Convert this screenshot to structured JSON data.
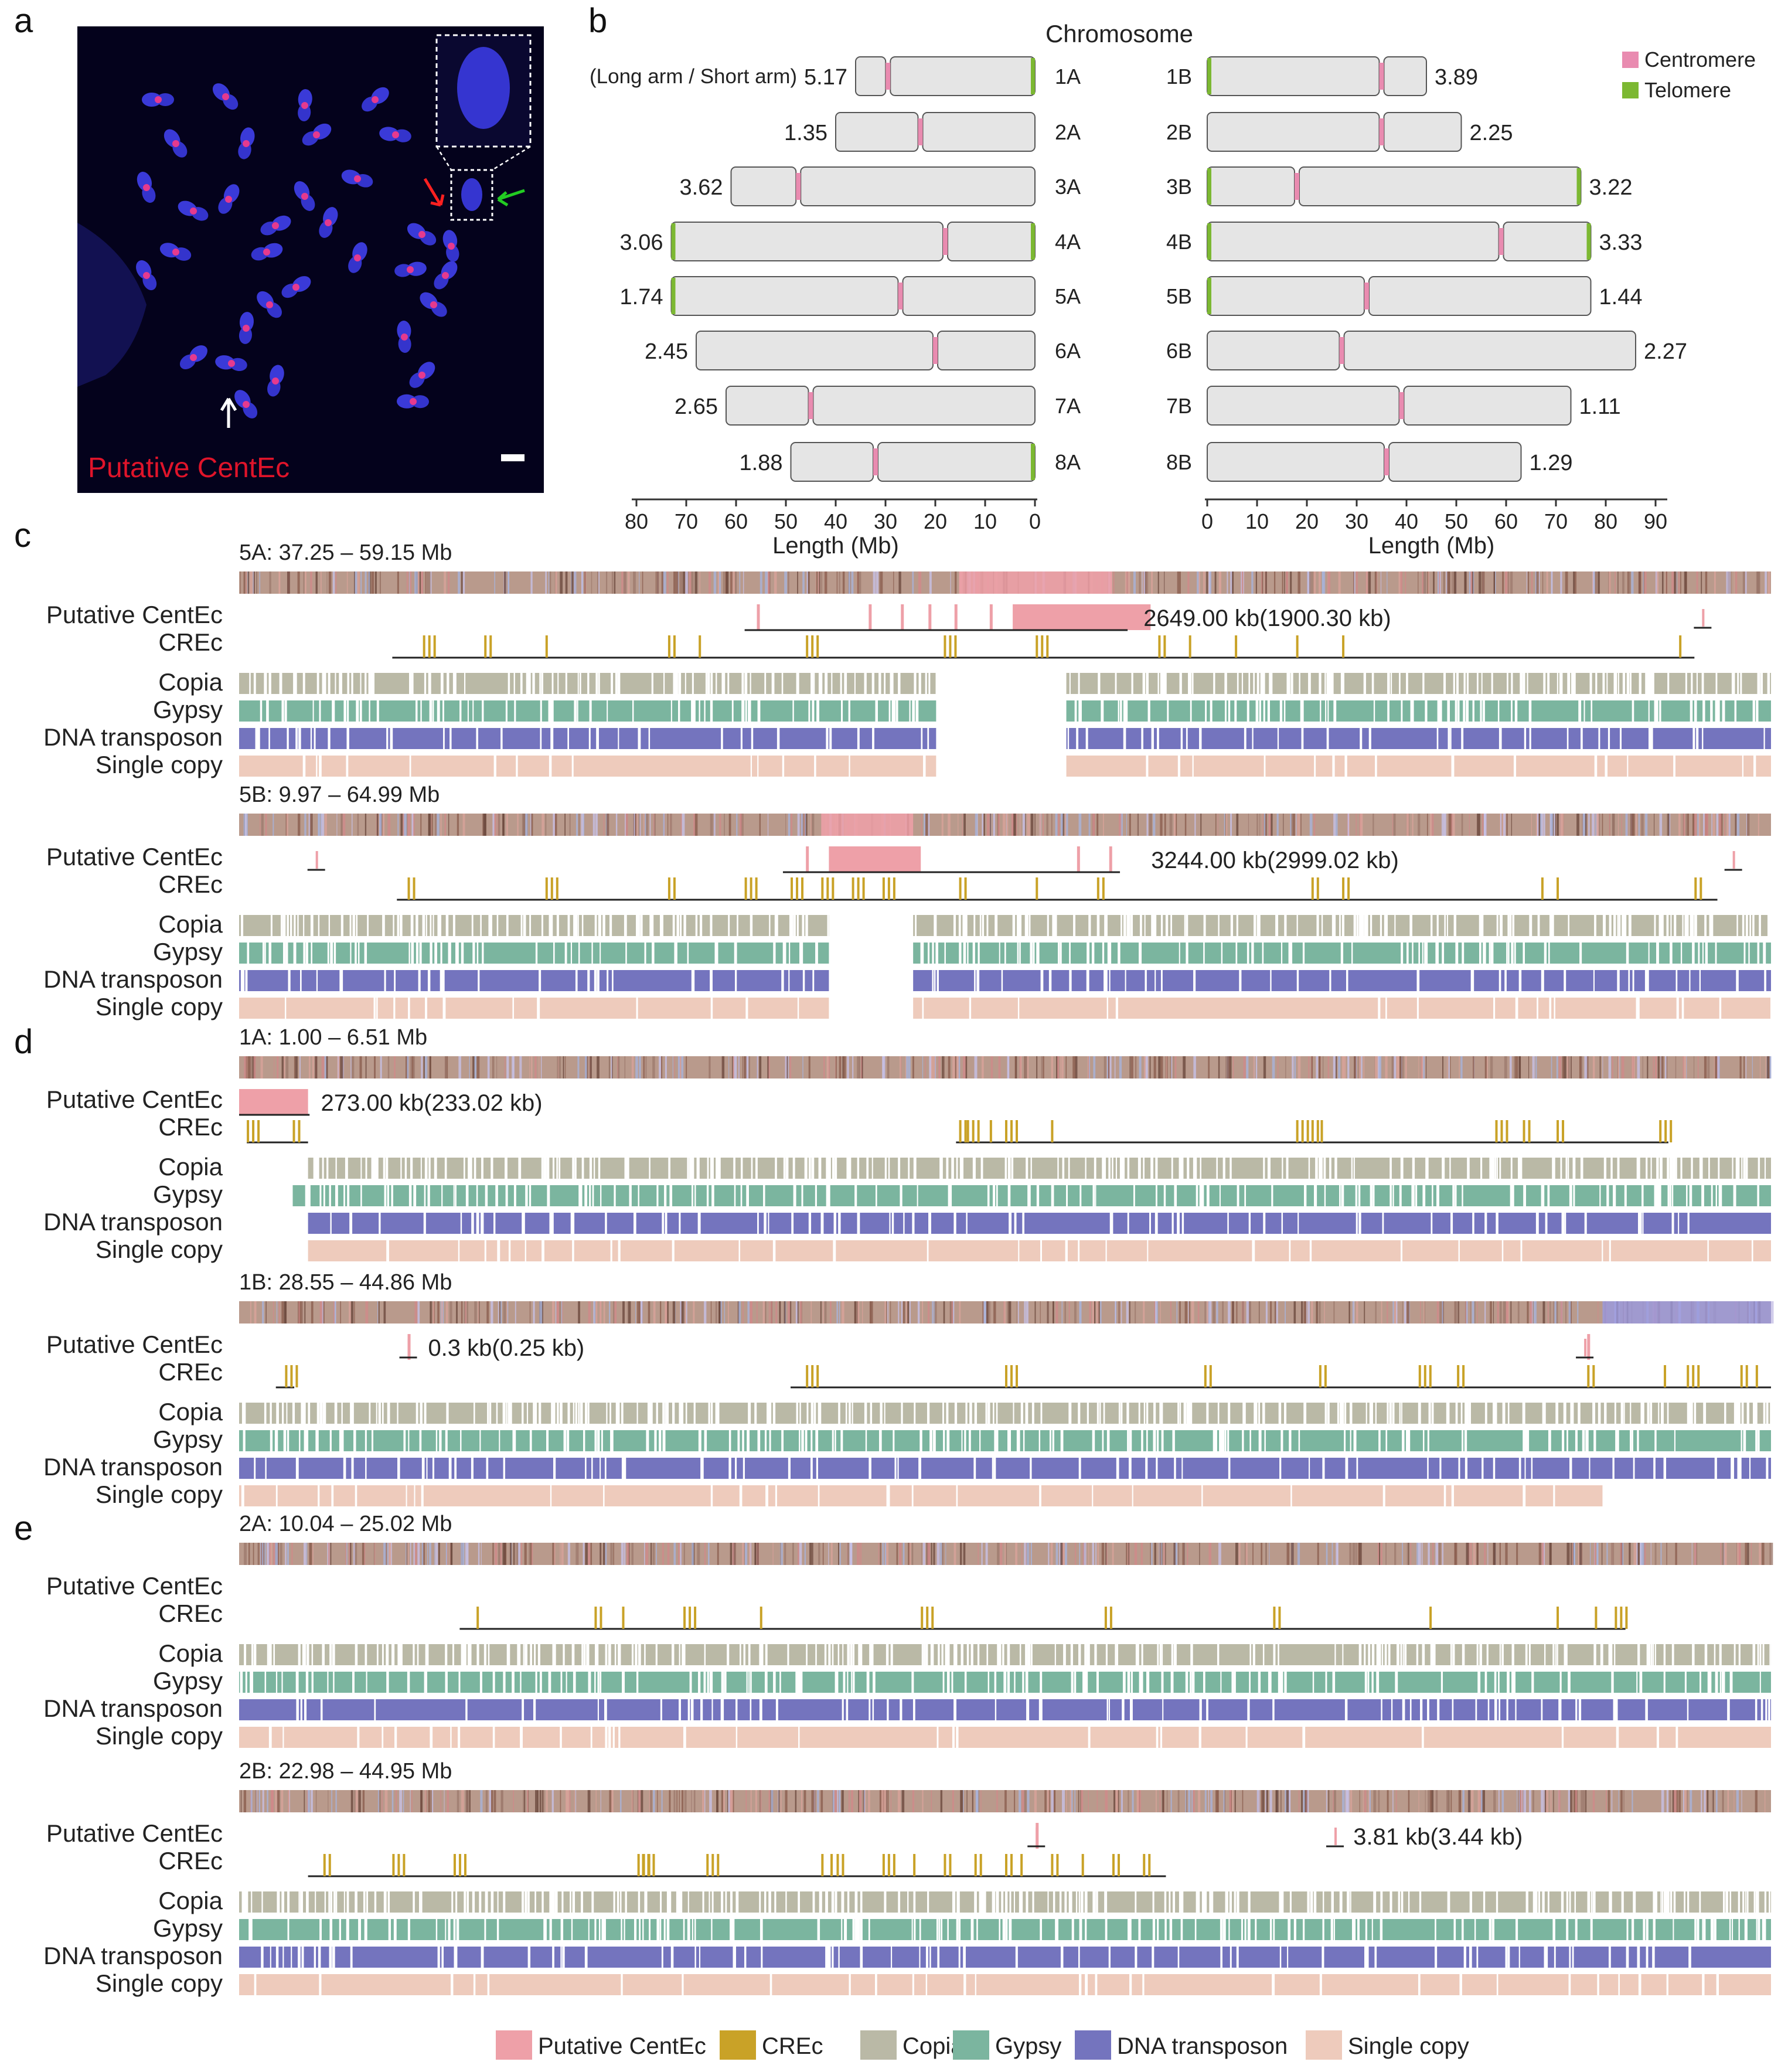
{
  "panels": {
    "a": "a",
    "b": "b",
    "c": "c",
    "d": "d",
    "e": "e"
  },
  "panel_a": {
    "label": "Putative CentEc",
    "label_color": "#e0142a"
  },
  "panel_b": {
    "header": "Chromosome",
    "ratio_note": "(Long arm / Short arm)",
    "legend": [
      {
        "name": "Centromere",
        "color": "#e98bb0"
      },
      {
        "name": "Telomere",
        "color": "#7cb832"
      }
    ],
    "xlabel": "Length (Mb)",
    "left_ticks": [
      "80",
      "70",
      "60",
      "50",
      "40",
      "30",
      "20",
      "10",
      "0"
    ],
    "right_ticks": [
      "0",
      "10",
      "20",
      "30",
      "40",
      "50",
      "60",
      "70",
      "80",
      "90"
    ],
    "chromosomes_A": [
      {
        "name": "1A",
        "length": 36,
        "cen": 29.5,
        "ratio": "5.17",
        "tel_left": false,
        "tel_right": true,
        "tel_cen_side": true
      },
      {
        "name": "2A",
        "length": 40,
        "cen": 23,
        "ratio": "1.35",
        "tel_left": false,
        "tel_right": false
      },
      {
        "name": "3A",
        "length": 61,
        "cen": 47.5,
        "ratio": "3.62",
        "tel_left": false,
        "tel_right": false
      },
      {
        "name": "4A",
        "length": 73,
        "cen": 18,
        "ratio": "3.06",
        "tel_left": true,
        "tel_right": true
      },
      {
        "name": "5A",
        "length": 73,
        "cen": 27,
        "ratio": "1.74",
        "tel_left": true,
        "tel_right": false
      },
      {
        "name": "6A",
        "length": 68,
        "cen": 20,
        "ratio": "2.45",
        "tel_left": false,
        "tel_right": false
      },
      {
        "name": "7A",
        "length": 62,
        "cen": 45,
        "ratio": "2.65",
        "tel_left": false,
        "tel_right": false
      },
      {
        "name": "8A",
        "length": 49,
        "cen": 32,
        "ratio": "1.88",
        "tel_left": false,
        "tel_right": true
      }
    ],
    "chromosomes_B": [
      {
        "name": "1B",
        "length": 44,
        "cen": 35,
        "ratio": "3.89",
        "tel_left": true,
        "tel_right": false
      },
      {
        "name": "2B",
        "length": 51,
        "cen": 35,
        "ratio": "2.25",
        "tel_left": false,
        "tel_right": false
      },
      {
        "name": "3B",
        "length": 75,
        "cen": 18,
        "ratio": "3.22",
        "tel_left": true,
        "tel_right": true
      },
      {
        "name": "4B",
        "length": 77,
        "cen": 59,
        "ratio": "3.33",
        "tel_left": true,
        "tel_right": true
      },
      {
        "name": "5B",
        "length": 77,
        "cen": 32,
        "ratio": "1.44",
        "tel_left": true,
        "tel_right": false
      },
      {
        "name": "6B",
        "length": 86,
        "cen": 27,
        "ratio": "2.27",
        "tel_left": false,
        "tel_right": false
      },
      {
        "name": "7B",
        "length": 73,
        "cen": 39,
        "ratio": "1.11",
        "tel_left": false,
        "tel_right": false
      },
      {
        "name": "8B",
        "length": 63,
        "cen": 36,
        "ratio": "1.29",
        "tel_left": false,
        "tel_right": false
      }
    ]
  },
  "track_names": [
    "Putative CentEc",
    "CREc",
    "Copia",
    "Gypsy",
    "DNA transposon",
    "Single copy"
  ],
  "regions": [
    {
      "title": "5A: 37.25 – 59.15 Mb",
      "centec": "2649.00 kb(1900.30 kb)"
    },
    {
      "title": "5B: 9.97 – 64.99 Mb",
      "centec": "3244.00 kb(2999.02 kb)"
    },
    {
      "title": "1A: 1.00 – 6.51 Mb",
      "centec": "273.00 kb(233.02 kb)"
    },
    {
      "title": "1B: 28.55 – 44.86 Mb",
      "centec": "0.3 kb(0.25 kb)"
    },
    {
      "title": "2A: 10.04 – 25.02 Mb",
      "centec": ""
    },
    {
      "title": "2B: 22.98 – 44.95 Mb",
      "centec": "3.81 kb(3.44 kb)"
    }
  ],
  "legend_bottom": [
    {
      "name": "Putative CentEc",
      "color": "#eea0a8"
    },
    {
      "name": "CREc",
      "color": "#c9a227"
    },
    {
      "name": "Copia",
      "color": "#bab9a6"
    },
    {
      "name": "Gypsy",
      "color": "#7bb59f"
    },
    {
      "name": "DNA transposon",
      "color": "#7474be"
    },
    {
      "name": "Single copy",
      "color": "#eecbbc"
    }
  ],
  "colors": {
    "centec": "#eea0a8",
    "crec": "#c9a227",
    "copia": "#bab9a6",
    "gypsy": "#7bb59f",
    "dna": "#7474be",
    "single": "#eecbbc",
    "overview": "#b99a8c",
    "centromere": "#e98bb0",
    "telomere": "#7cb832",
    "chrom_fill": "#e5e5e5"
  }
}
